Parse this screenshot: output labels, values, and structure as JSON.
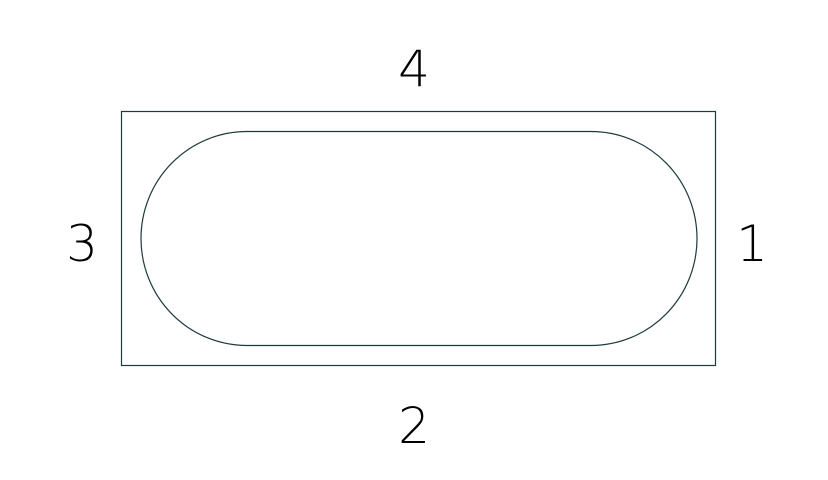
{
  "colors": {
    "stroke": "#1e3a3f",
    "label": "#1e3a3f",
    "background": "#ffffff"
  },
  "outer_shape": "rectangle",
  "inner_shape": "stadium",
  "labels": {
    "top": "4",
    "right": "1",
    "bottom": "2",
    "left": "3"
  }
}
